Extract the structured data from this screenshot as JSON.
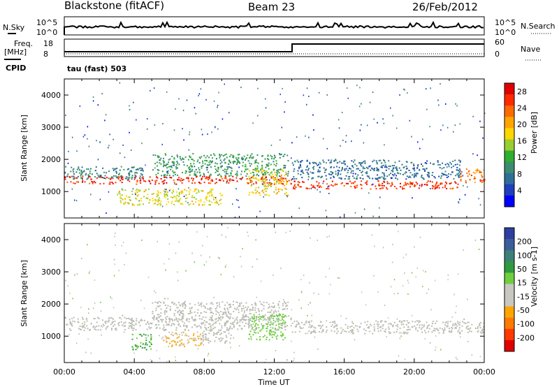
{
  "header": {
    "station": "Blackstone (fitACF)",
    "beam": "Beam 23",
    "date": "26/Feb/2012"
  },
  "top_panels": {
    "nsky_label": "N.Sky",
    "nsearch_label": "N.Search",
    "count_ticks_left": [
      "10^5",
      "10^0"
    ],
    "count_ticks_right": [
      "10^5",
      "10^0"
    ],
    "freq_label_1": "Freq.",
    "freq_label_2": "[MHz]",
    "freq_ticks": [
      "18",
      "8"
    ],
    "nave_label": "Nave",
    "nave_ticks": [
      "60",
      "0"
    ],
    "cpid_label": "CPID",
    "cpid_value": "tau (fast) 503"
  },
  "colors": {
    "power_scale": [
      "#0000ff",
      "#1f3fbf",
      "#2e6f9a",
      "#3c8c6e",
      "#2fae2f",
      "#9acd32",
      "#ffd700",
      "#ffa500",
      "#ff6a00",
      "#ff2a00",
      "#e00000"
    ],
    "velocity_scale": [
      "#2d3fa0",
      "#3b5f9a",
      "#3f7f7a",
      "#2e9b3f",
      "#6fcf3f",
      "#c8c8c0",
      "#c8c8c0",
      "#ffa500",
      "#ff7a00",
      "#ff3a00",
      "#e00000"
    ],
    "ground_scatter": "#bcbcb4"
  },
  "chart_data": [
    {
      "type": "heatmap",
      "title": "Power",
      "ylabel": "Slant Range [km]",
      "xlabel": "Time UT",
      "x_ticks": [
        "00:00",
        "04:00",
        "08:00",
        "12:00",
        "16:00",
        "20:00",
        "00:00"
      ],
      "y_ticks": [
        1000,
        2000,
        3000,
        4000
      ],
      "ylim": [
        180,
        4500
      ],
      "xlim_hours": [
        0,
        24
      ],
      "colorbar_label": "Power [dB]",
      "colorbar_ticks": [
        4,
        8,
        12,
        16,
        20,
        24,
        28
      ],
      "colorbar_range": [
        0,
        30
      ],
      "bands": [
        {
          "t": [
            0,
            13
          ],
          "r": [
            1250,
            1500
          ],
          "value": 28
        },
        {
          "t": [
            13,
            22.6
          ],
          "r": [
            1100,
            1350
          ],
          "value": 27
        },
        {
          "t": [
            22.6,
            24
          ],
          "r": [
            1300,
            1750
          ],
          "value": 24
        },
        {
          "t": [
            0,
            4.5
          ],
          "r": [
            1400,
            1800
          ],
          "value": 8
        },
        {
          "t": [
            5,
            12.8
          ],
          "r": [
            1500,
            2200
          ],
          "value": 10
        },
        {
          "t": [
            3,
            9
          ],
          "r": [
            600,
            1100
          ],
          "value": 17
        },
        {
          "t": [
            10.5,
            12.8
          ],
          "r": [
            900,
            1700
          ],
          "value": 18
        },
        {
          "t": [
            13,
            22.6
          ],
          "r": [
            1400,
            2000
          ],
          "value": 6
        }
      ]
    },
    {
      "type": "heatmap",
      "title": "Velocity",
      "ylabel": "Slant Range [km]",
      "xlabel": "Time UT",
      "x_ticks": [
        "00:00",
        "04:00",
        "08:00",
        "12:00",
        "16:00",
        "20:00",
        "00:00"
      ],
      "y_ticks": [
        1000,
        2000,
        3000,
        4000
      ],
      "ylim": [
        180,
        4500
      ],
      "xlim_hours": [
        0,
        24
      ],
      "colorbar_label": "Velocity [m s-1]",
      "colorbar_ticks": [
        200,
        100,
        50,
        15,
        -15,
        -50,
        -100,
        -200
      ],
      "bands": [
        {
          "t": [
            0,
            13
          ],
          "r": [
            1200,
            1600
          ],
          "value": 0
        },
        {
          "t": [
            13,
            24
          ],
          "r": [
            1100,
            1500
          ],
          "value": 0
        },
        {
          "t": [
            5,
            12.8
          ],
          "r": [
            1500,
            2100
          ],
          "value": 0
        },
        {
          "t": [
            3.8,
            5
          ],
          "r": [
            600,
            1100
          ],
          "value": 60
        },
        {
          "t": [
            5.5,
            7.8
          ],
          "r": [
            700,
            1150
          ],
          "value": -60
        },
        {
          "t": [
            7.8,
            9.5
          ],
          "r": [
            800,
            1300
          ],
          "value": 0
        },
        {
          "t": [
            10.5,
            12.6
          ],
          "r": [
            900,
            1700
          ],
          "value": 40
        }
      ]
    }
  ]
}
